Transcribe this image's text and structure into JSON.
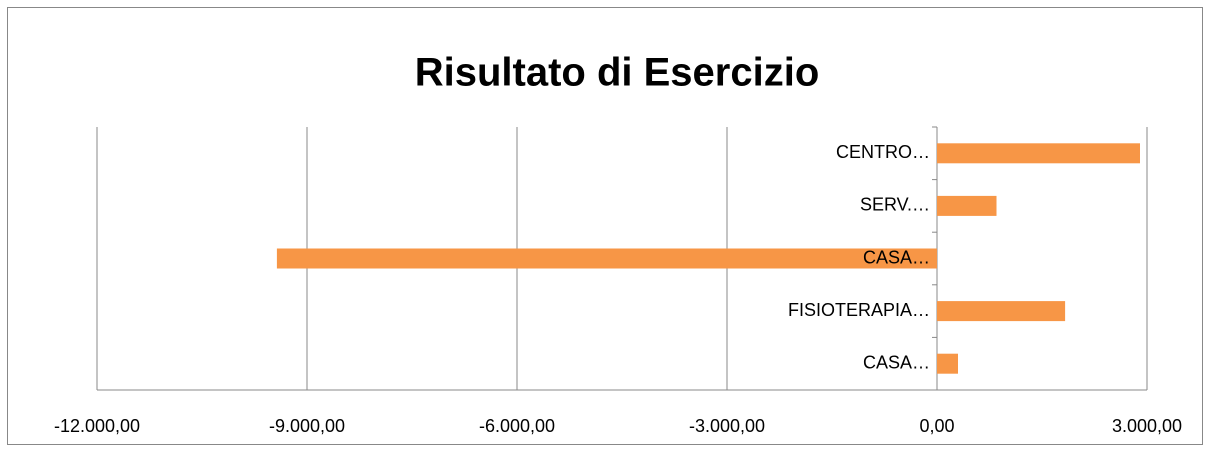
{
  "chart_data": {
    "type": "barh",
    "title": "Risultato di Esercizio",
    "categories": [
      "CENTRO…",
      "SERV.…",
      "CASA…",
      "FISIOTERAPIA…",
      "CASA…"
    ],
    "values": [
      2900,
      850,
      -9430,
      1830,
      300
    ],
    "color": "#f79646",
    "xlim": [
      -12000,
      3000
    ],
    "xticks": [
      {
        "value": -12000,
        "label": "-12.000,00"
      },
      {
        "value": -9000,
        "label": "-9.000,00"
      },
      {
        "value": -6000,
        "label": "-6.000,00"
      },
      {
        "value": -3000,
        "label": "-3.000,00"
      },
      {
        "value": 0,
        "label": "0,00"
      },
      {
        "value": 3000,
        "label": "3.000,00"
      }
    ],
    "grid": true
  }
}
